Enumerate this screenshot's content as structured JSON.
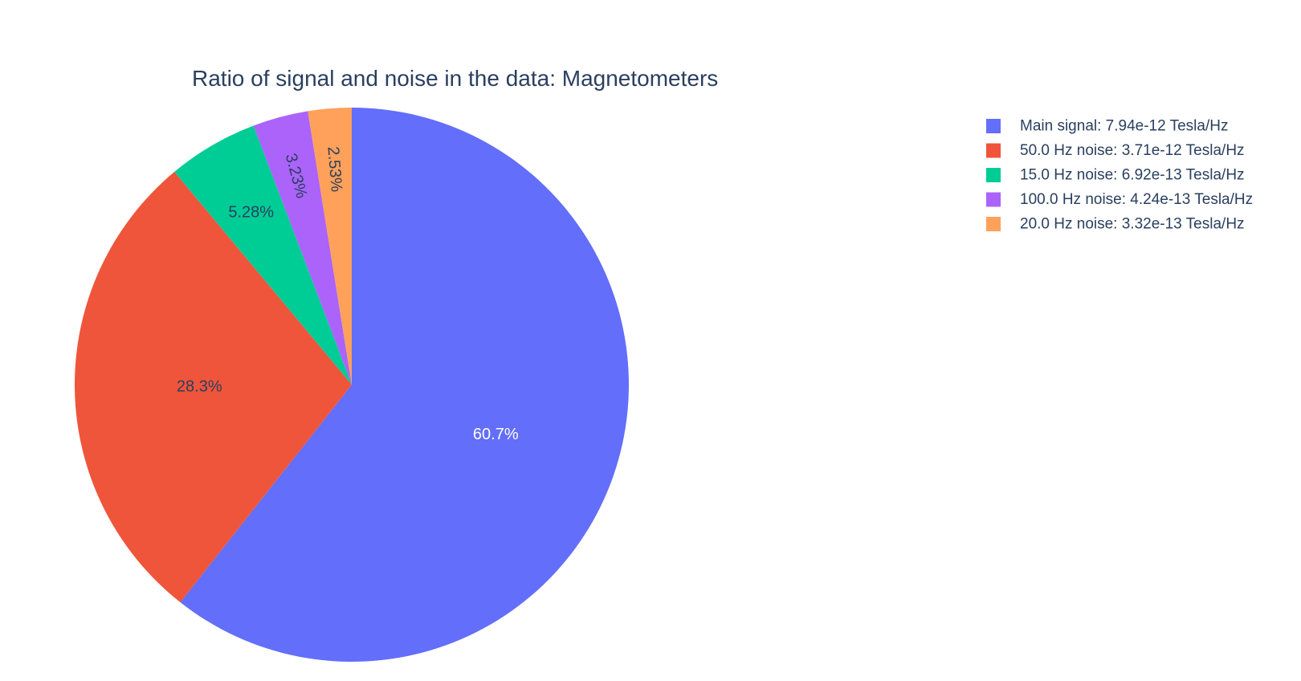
{
  "chart_data": {
    "type": "pie",
    "title": "Ratio of signal and noise in the data: Magnetometers",
    "direction": "clockwise",
    "start_angle_deg": 0,
    "legend_position": "top-right",
    "slices": [
      {
        "legend": "Main signal: 7.94e-12 Tesla/Hz",
        "value": 7.94e-12,
        "percent_label": "60.7%",
        "color": "#636efa",
        "label_color": "#ffffff",
        "label_rotated": false
      },
      {
        "legend": "50.0 Hz noise: 3.71e-12 Tesla/Hz",
        "value": 3.71e-12,
        "percent_label": "28.3%",
        "color": "#EF553B",
        "label_color": "#2a3f5f",
        "label_rotated": false
      },
      {
        "legend": "15.0 Hz noise: 6.92e-13 Tesla/Hz",
        "value": 6.92e-13,
        "percent_label": "5.28%",
        "color": "#00cc96",
        "label_color": "#2a3f5f",
        "label_rotated": false
      },
      {
        "legend": "100.0 Hz noise: 4.24e-13 Tesla/Hz",
        "value": 4.24e-13,
        "percent_label": "3.23%",
        "color": "#ab63fa",
        "label_color": "#2a3f5f",
        "label_rotated": true
      },
      {
        "legend": "20.0 Hz noise: 3.32e-13 Tesla/Hz",
        "value": 3.32e-13,
        "percent_label": "2.53%",
        "color": "#FFA15A",
        "label_color": "#2a3f5f",
        "label_rotated": true
      }
    ]
  }
}
